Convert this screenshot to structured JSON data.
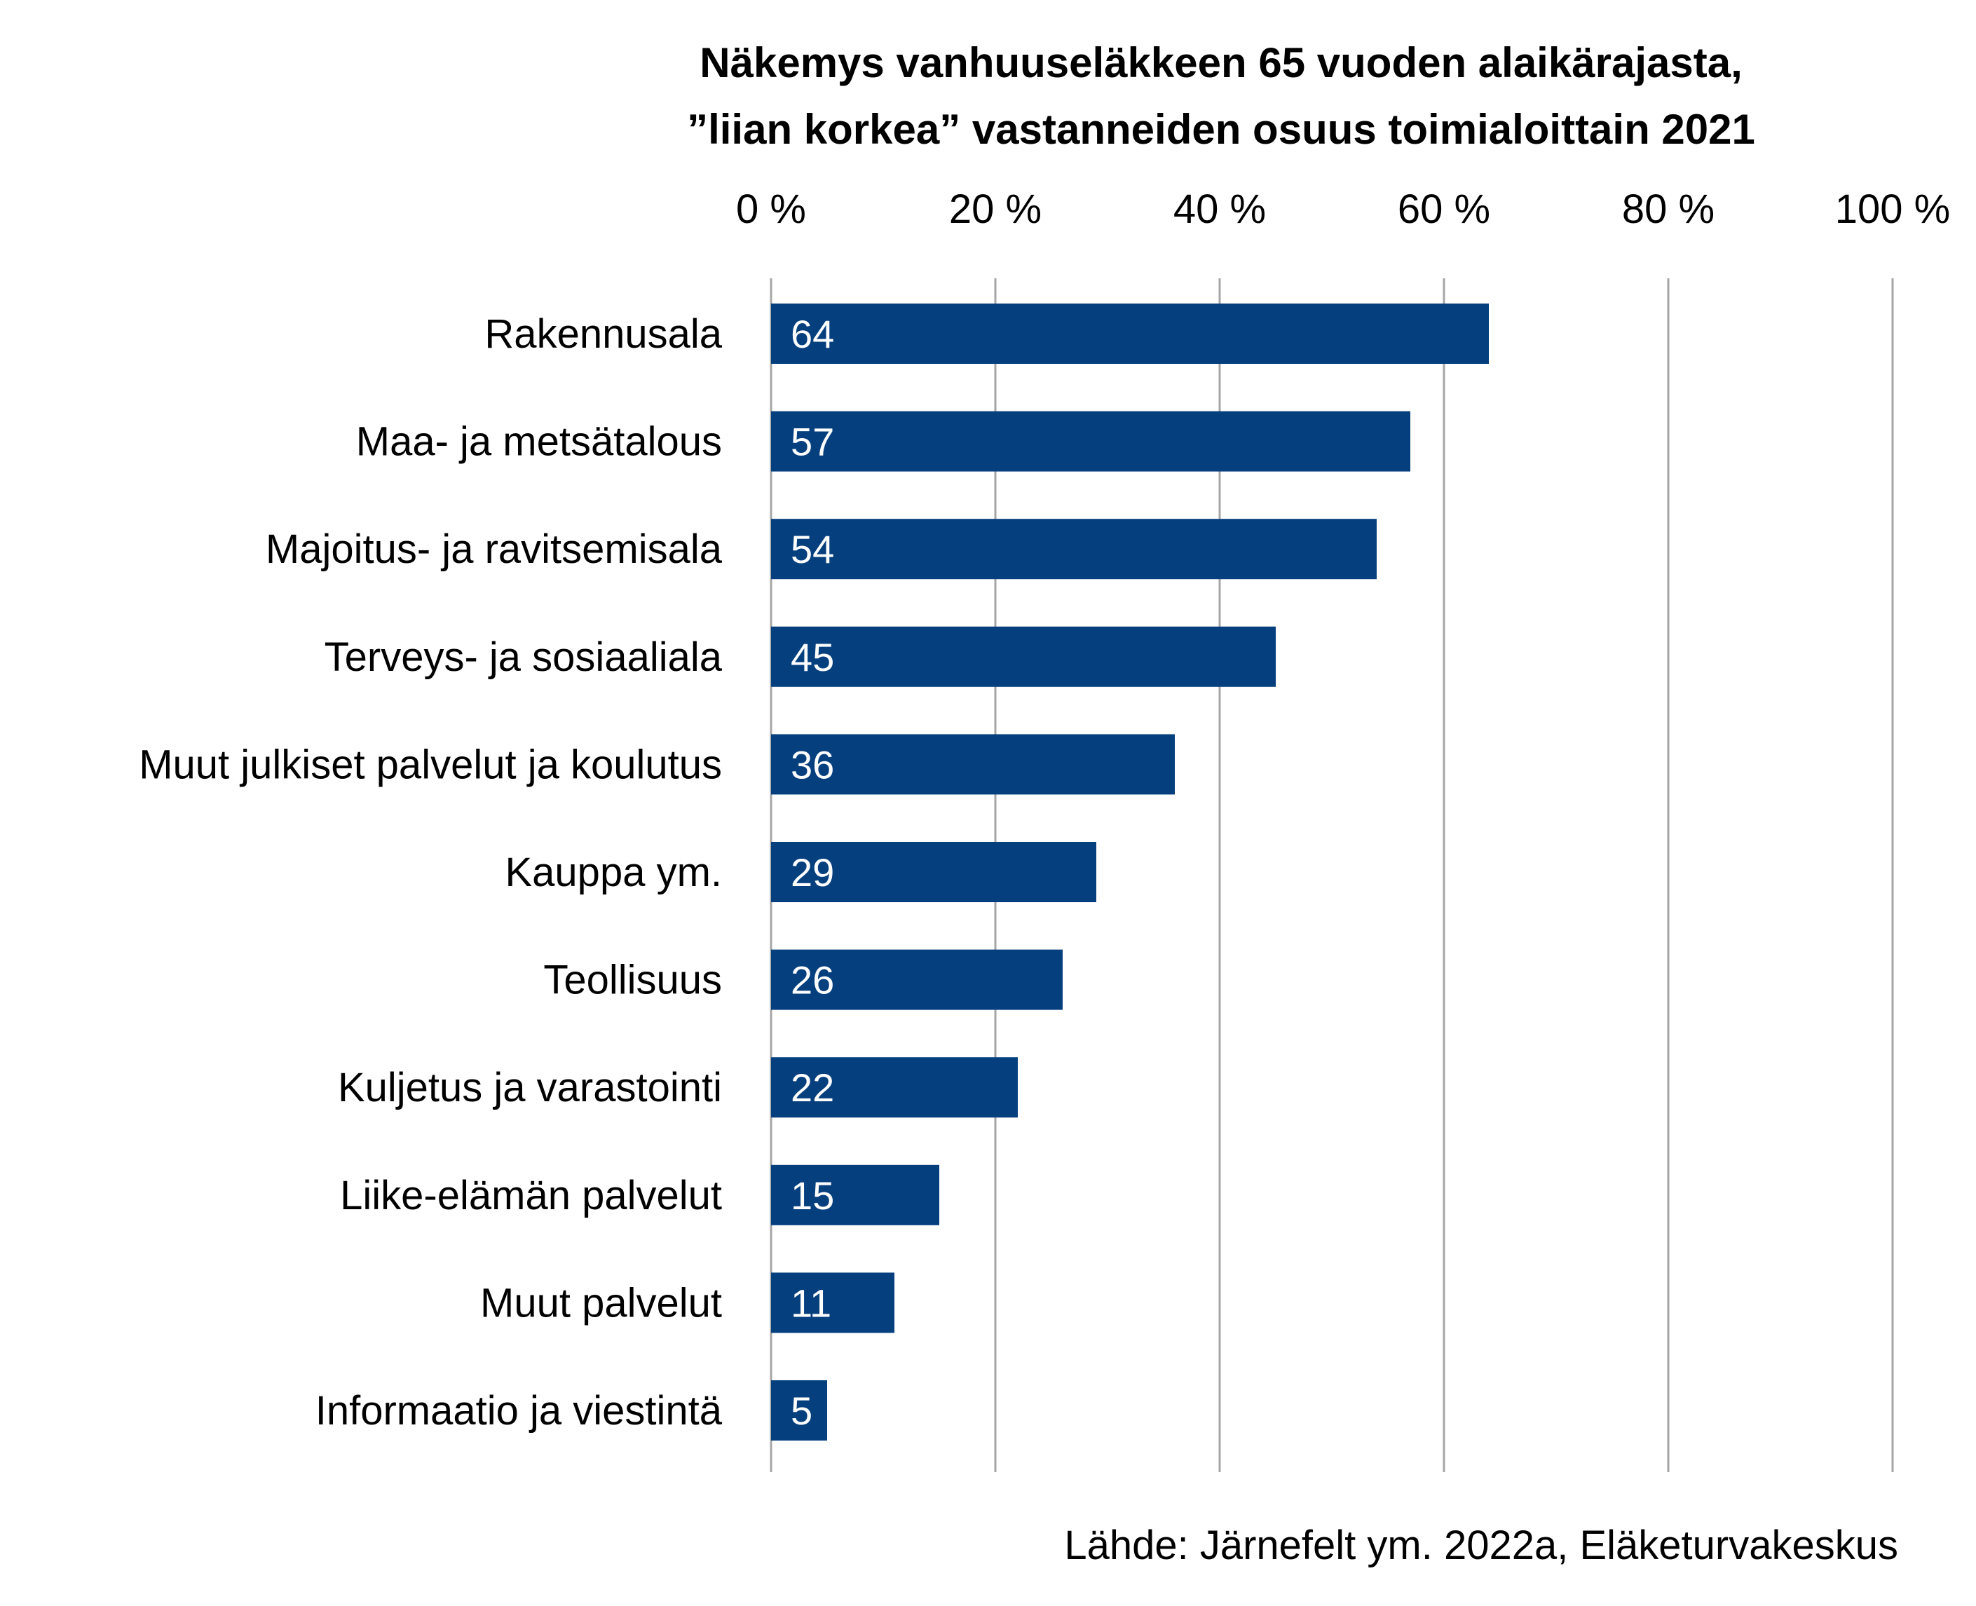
{
  "chart_data": {
    "type": "bar",
    "orientation": "horizontal",
    "title": [
      "Näkemys vanhuuseläkkeen 65 vuoden alaikärajasta,",
      "”liian korkea” vastanneiden osuus toimialoittain 2021"
    ],
    "categories": [
      "Rakennusala",
      "Maa- ja metsätalous",
      "Majoitus- ja ravitsemisala",
      "Terveys- ja sosiaaliala",
      "Muut julkiset palvelut ja koulutus",
      "Kauppa ym.",
      "Teollisuus",
      "Kuljetus ja varastointi",
      "Liike-elämän palvelut",
      "Muut palvelut",
      "Informaatio ja viestintä"
    ],
    "values": [
      64,
      57,
      54,
      45,
      36,
      29,
      26,
      22,
      15,
      11,
      5
    ],
    "data_labels": [
      "64",
      "57",
      "54",
      "45",
      "36",
      "29",
      "26",
      "22",
      "15",
      "11",
      "5"
    ],
    "xlim": [
      0,
      100
    ],
    "x_ticks": [
      0,
      20,
      40,
      60,
      80,
      100
    ],
    "x_tick_labels": [
      "0 %",
      "20 %",
      "40 %",
      "60 %",
      "80 %",
      "100 %"
    ],
    "x_axis_position": "top",
    "grid": true,
    "bar_color": "#063F7E",
    "gridline_color": "#A6A6A6",
    "source": "Lähde: Järnefelt ym. 2022a, Eläketurvakeskus"
  }
}
